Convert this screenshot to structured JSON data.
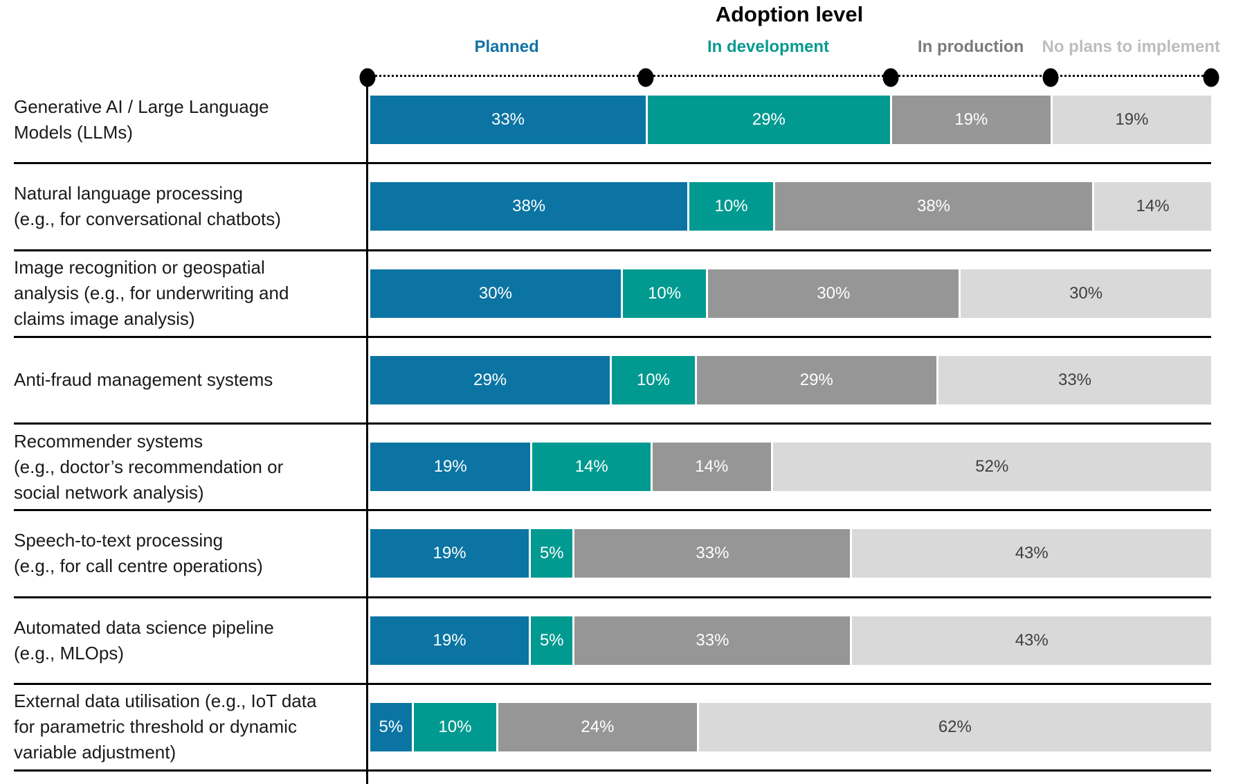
{
  "title": "Adoption level",
  "legend": {
    "items": [
      {
        "label": "Planned",
        "color": "#1173a3"
      },
      {
        "label": "In development",
        "color": "#089a90"
      },
      {
        "label": "In production",
        "color": "#7b7b7b"
      },
      {
        "label": "No plans to implement",
        "color": "#bdbdbd"
      }
    ]
  },
  "chart_data": {
    "type": "bar",
    "orientation": "horizontal",
    "stacked": true,
    "value_unit": "%",
    "axis_style": "dotted line with round markers at first-row segment boundaries",
    "xlim": [
      0,
      100
    ],
    "series_names": [
      "Planned",
      "In development",
      "In production",
      "No plans to implement"
    ],
    "series_colors": [
      "#0b74a3",
      "#009a90",
      "#969696",
      "#d9d9d9"
    ],
    "value_label_colors": [
      "#ffffff",
      "#ffffff",
      "#ffffff",
      "#3f3f3f"
    ],
    "rows": [
      {
        "category": "Generative AI / Large Language Models (LLMs)",
        "category_lines": [
          "Generative AI / Large Language",
          "Models (LLMs)"
        ],
        "values": [
          33,
          29,
          19,
          19
        ],
        "labels": [
          "33%",
          "29%",
          "19%",
          "19%"
        ]
      },
      {
        "category": "Natural language processing (e.g., for conversational chatbots)",
        "category_lines": [
          "Natural language processing",
          "(e.g., for conversational chatbots)"
        ],
        "values": [
          38,
          10,
          38,
          14
        ],
        "labels": [
          "38%",
          "10%",
          "38%",
          "14%"
        ]
      },
      {
        "category": "Image recognition or geospatial analysis (e.g., for underwriting and claims image analysis)",
        "category_lines": [
          "Image recognition or geospatial",
          "analysis (e.g., for underwriting and",
          "claims image analysis)"
        ],
        "values": [
          30,
          10,
          30,
          30
        ],
        "labels": [
          "30%",
          "10%",
          "30%",
          "30%"
        ]
      },
      {
        "category": "Anti-fraud management systems",
        "category_lines": [
          "Anti-fraud management systems"
        ],
        "values": [
          29,
          10,
          29,
          33
        ],
        "labels": [
          "29%",
          "10%",
          "29%",
          "33%"
        ]
      },
      {
        "category": "Recommender systems (e.g., doctor’s recommendation or social network analysis)",
        "category_lines": [
          "Recommender systems",
          "(e.g., doctor’s recommendation or",
          "social network analysis)"
        ],
        "values": [
          19,
          14,
          14,
          52
        ],
        "labels": [
          "19%",
          "14%",
          "14%",
          "52%"
        ]
      },
      {
        "category": "Speech-to-text processing (e.g., for call centre operations)",
        "category_lines": [
          "Speech-to-text processing",
          "(e.g., for call centre operations)"
        ],
        "values": [
          19,
          5,
          33,
          43
        ],
        "labels": [
          "19%",
          "5%",
          "33%",
          "43%"
        ]
      },
      {
        "category": "Automated data science pipeline (e.g., MLOps)",
        "category_lines": [
          "Automated data science pipeline",
          "(e.g., MLOps)"
        ],
        "values": [
          19,
          5,
          33,
          43
        ],
        "labels": [
          "19%",
          "5%",
          "33%",
          "43%"
        ]
      },
      {
        "category": "External data utilisation (e.g., IoT data for parametric threshold or dynamic variable adjustment)",
        "category_lines": [
          "External data utilisation (e.g., IoT data",
          "for parametric threshold or dynamic",
          "variable adjustment)"
        ],
        "values": [
          5,
          10,
          24,
          62
        ],
        "labels": [
          "5%",
          "10%",
          "24%",
          "62%"
        ]
      }
    ]
  }
}
